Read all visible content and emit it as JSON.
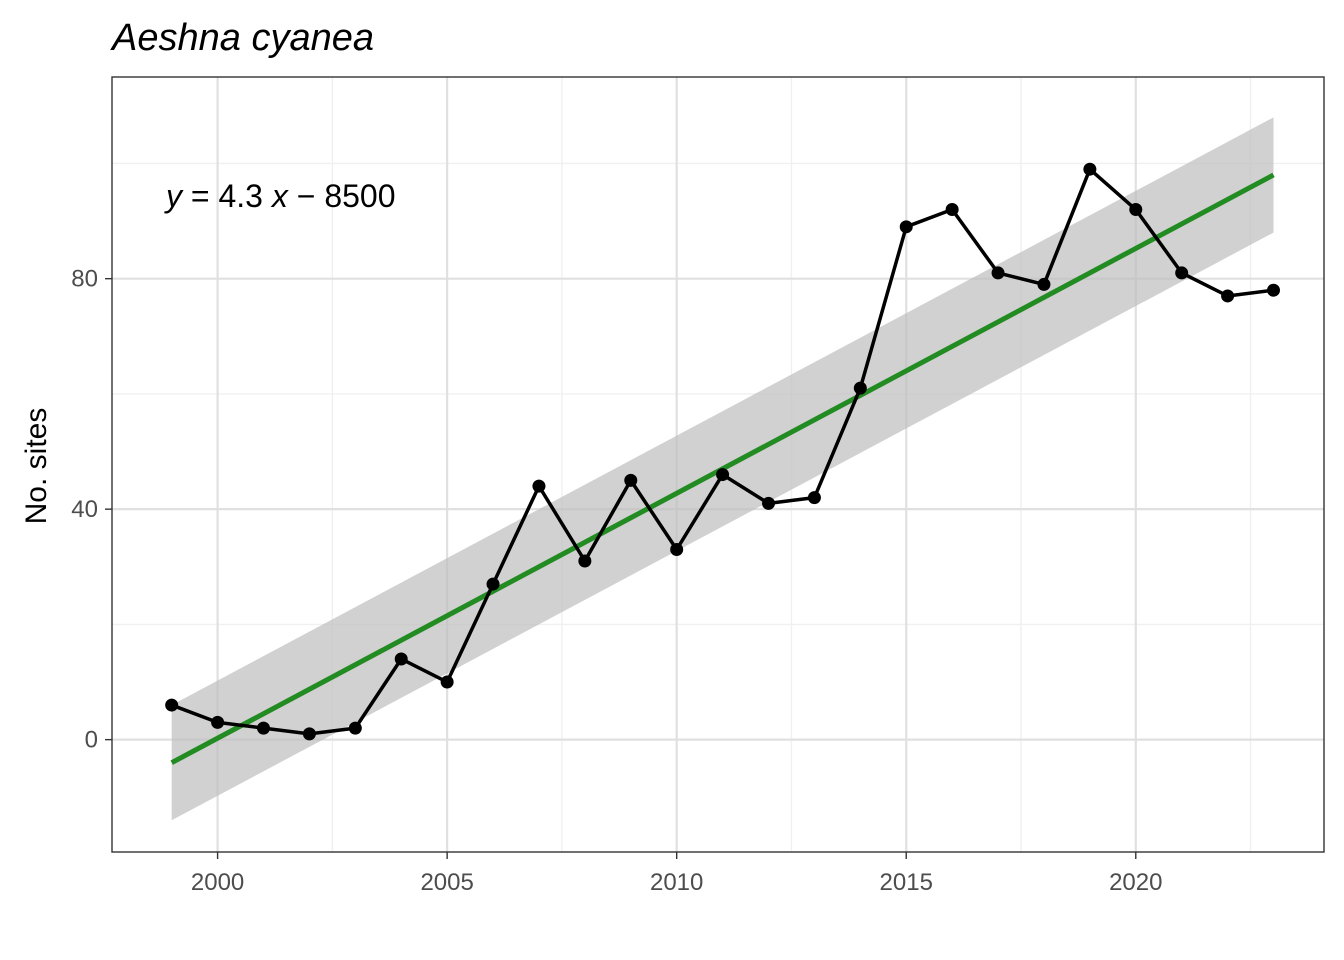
{
  "chart_data": {
    "type": "line",
    "title": "Aeshna cyanea",
    "xlabel": "",
    "ylabel": "No. sites",
    "annotation": "y = 4.3 x − 8500",
    "annotation_parts": {
      "y": "y",
      "eq1": " = 4.3 ",
      "x": "x",
      "eq2": " − 8500"
    },
    "xlim": [
      1997.7,
      2024.1
    ],
    "ylim": [
      -19.5,
      115
    ],
    "x_ticks": [
      2000,
      2005,
      2010,
      2015,
      2020
    ],
    "y_ticks": [
      0,
      40,
      80
    ],
    "grid": true,
    "legend": "none",
    "series": [
      {
        "values": [
          {
            "x": 1999,
            "y": 6
          },
          {
            "x": 2000,
            "y": 3
          },
          {
            "x": 2001,
            "y": 2
          },
          {
            "x": 2002,
            "y": 1
          },
          {
            "x": 2003,
            "y": 2
          },
          {
            "x": 2004,
            "y": 14
          },
          {
            "x": 2005,
            "y": 10
          },
          {
            "x": 2006,
            "y": 27
          },
          {
            "x": 2007,
            "y": 44
          },
          {
            "x": 2008,
            "y": 31
          },
          {
            "x": 2009,
            "y": 45
          },
          {
            "x": 2010,
            "y": 33
          },
          {
            "x": 2011,
            "y": 46
          },
          {
            "x": 2012,
            "y": 41
          },
          {
            "x": 2013,
            "y": 42
          },
          {
            "x": 2014,
            "y": 61
          },
          {
            "x": 2015,
            "y": 89
          },
          {
            "x": 2016,
            "y": 92
          },
          {
            "x": 2017,
            "y": 81
          },
          {
            "x": 2018,
            "y": 79
          },
          {
            "x": 2019,
            "y": 99
          },
          {
            "x": 2020,
            "y": 92
          },
          {
            "x": 2021,
            "y": 81
          },
          {
            "x": 2022,
            "y": 77
          },
          {
            "x": 2023,
            "y": 78
          }
        ]
      }
    ],
    "trend": {
      "x": [
        1999,
        2023
      ],
      "fit": [
        -4,
        98
      ],
      "ci_lower": [
        -14,
        88
      ],
      "ci_upper": [
        6,
        108
      ]
    },
    "colors": {
      "line": "#000000",
      "trend": "#228B22",
      "ribbon": "#bebebe",
      "grid_major": "#e0e0e0",
      "grid_minor": "#f0f0f0",
      "panel_border": "#333333"
    }
  }
}
